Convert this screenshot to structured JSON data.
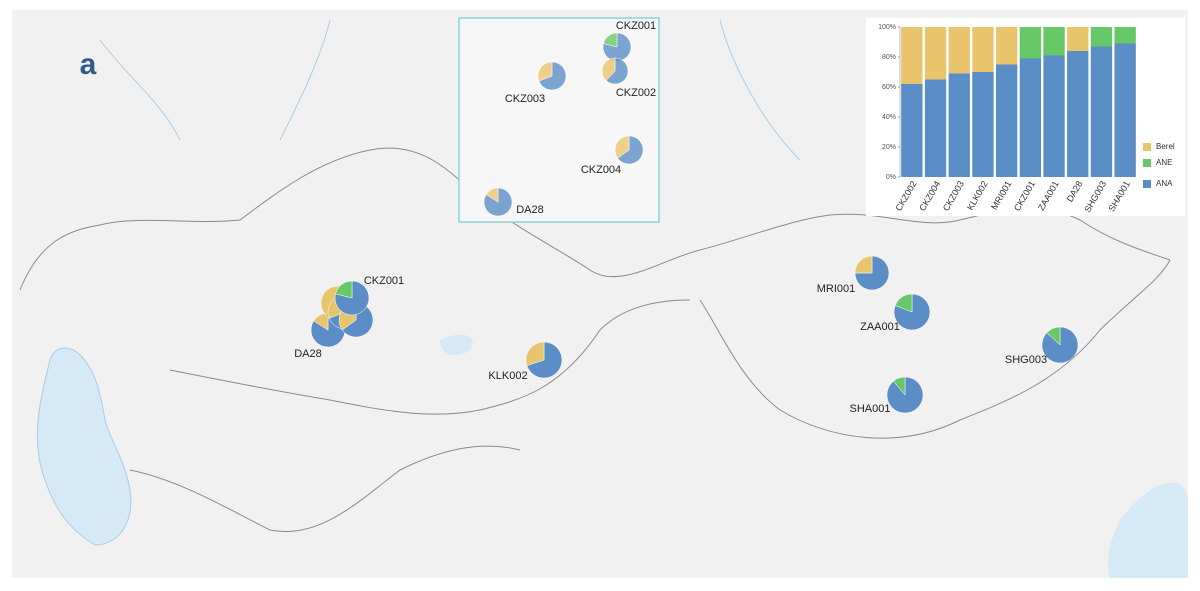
{
  "panel_label": "a",
  "chart_data": {
    "type": "bar",
    "stacked": true,
    "categories": [
      "CKZ002",
      "CKZ004",
      "CKZ003",
      "KLK002",
      "MRI001",
      "CKZ001",
      "ZAA001",
      "DA28",
      "SHG003",
      "SHA001"
    ],
    "series": [
      {
        "name": "ANA",
        "color": "#5b8ec6",
        "values": [
          62,
          65,
          69,
          70,
          75,
          79,
          81,
          84,
          87,
          89
        ]
      },
      {
        "name": "ANE",
        "color": "#66c866",
        "values": [
          0,
          0,
          0,
          0,
          0,
          21,
          19,
          0,
          13,
          11
        ]
      },
      {
        "name": "Berel",
        "color": "#e8c46c",
        "values": [
          38,
          35,
          31,
          30,
          25,
          0,
          0,
          16,
          0,
          0
        ]
      }
    ],
    "ylim": [
      0,
      100
    ],
    "yticks": [
      {
        "value": 0,
        "label": "0%"
      },
      {
        "value": 20,
        "label": "20%"
      },
      {
        "value": 40,
        "label": "40%"
      },
      {
        "value": 60,
        "label": "60%"
      },
      {
        "value": 80,
        "label": "80%"
      },
      {
        "value": 100,
        "label": "100%"
      }
    ],
    "legend": "right"
  }
}
